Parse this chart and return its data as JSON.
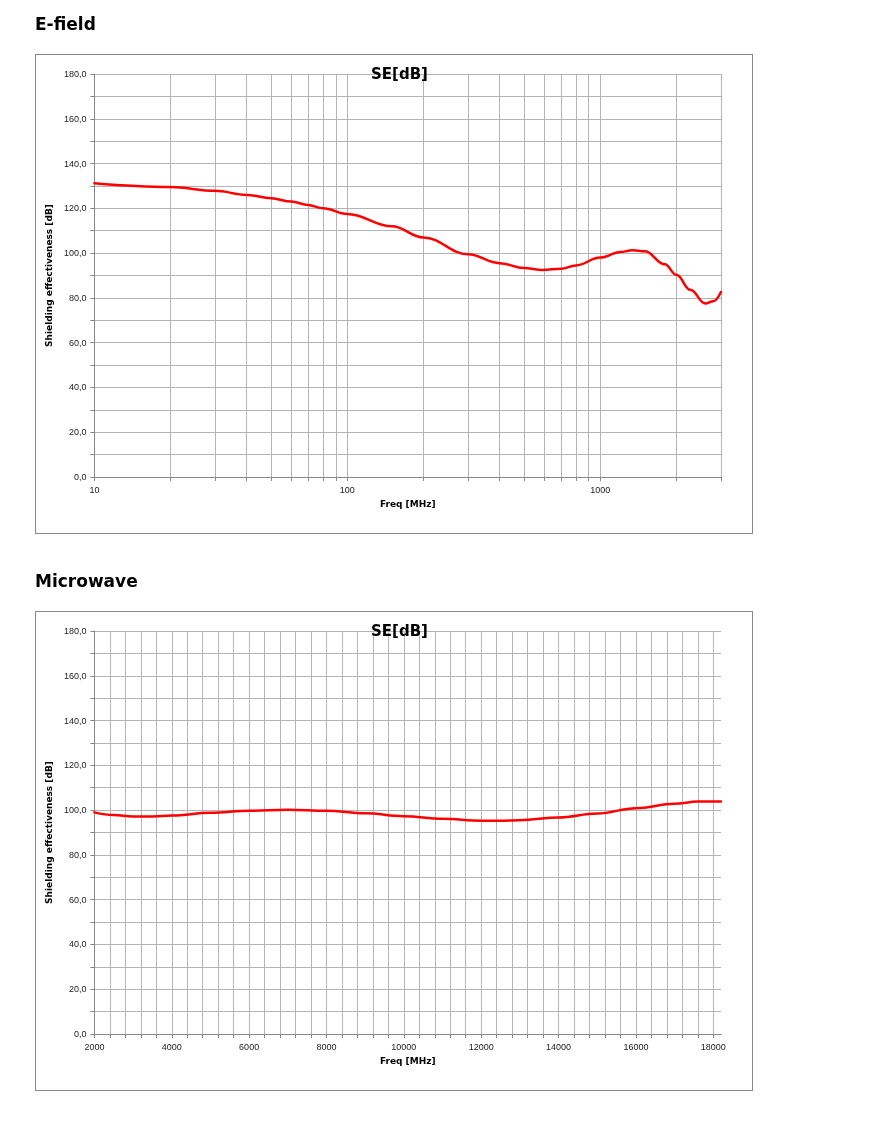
{
  "chart_data": [
    {
      "type": "line",
      "title": "E-field",
      "subtitle": "SE[dB]",
      "xlabel": "Freq [MHz]",
      "ylabel": "Shielding effectiveness [dB]",
      "log": "x",
      "grid": true,
      "marker": "none",
      "line_style": "solid",
      "x": [
        10,
        20,
        30,
        40,
        50,
        60,
        70,
        80,
        100,
        150,
        200,
        300,
        400,
        500,
        590,
        700,
        800,
        1000,
        1200,
        1340,
        1500,
        1800,
        2000,
        2270,
        2600,
        2800,
        3000
      ],
      "series": [
        {
          "color": "#ff0000",
          "values": [
            131.2,
            129.5,
            127.8,
            126,
            124.5,
            123,
            121.5,
            120,
            117.5,
            112,
            107,
            99.5,
            95.5,
            93.3,
            92.5,
            93,
            94.5,
            98,
            100.5,
            101.3,
            100.8,
            95,
            90.3,
            83.6,
            77.5,
            78.5,
            82.6
          ]
        }
      ],
      "xlim": [
        10,
        3000
      ],
      "xticks": [
        10,
        {
          "value": 20,
          "label": null
        },
        {
          "value": 30,
          "label": null
        },
        {
          "value": 40,
          "label": null
        },
        {
          "value": 50,
          "label": null
        },
        {
          "value": 60,
          "label": null
        },
        {
          "value": 70,
          "label": null
        },
        {
          "value": 80,
          "label": null
        },
        {
          "value": 90,
          "label": null
        },
        100,
        {
          "value": 200,
          "label": null
        },
        {
          "value": 300,
          "label": null
        },
        {
          "value": 400,
          "label": null
        },
        {
          "value": 500,
          "label": null
        },
        {
          "value": 600,
          "label": null
        },
        {
          "value": 700,
          "label": null
        },
        {
          "value": 800,
          "label": null
        },
        {
          "value": 900,
          "label": null
        },
        1000,
        {
          "value": 2000,
          "label": null
        },
        {
          "value": 3000,
          "label": null
        }
      ],
      "ylim": [
        0,
        180
      ],
      "yticks": [
        {
          "value": 0,
          "label": "0,0"
        },
        {
          "value": 10,
          "label": null
        },
        {
          "value": 20,
          "label": "20,0"
        },
        {
          "value": 30,
          "label": null
        },
        {
          "value": 40,
          "label": "40,0"
        },
        {
          "value": 50,
          "label": null
        },
        {
          "value": 60,
          "label": "60,0"
        },
        {
          "value": 70,
          "label": null
        },
        {
          "value": 80,
          "label": "80,0"
        },
        {
          "value": 90,
          "label": null
        },
        {
          "value": 100,
          "label": "100,0"
        },
        {
          "value": 110,
          "label": null
        },
        {
          "value": 120,
          "label": "120,0"
        },
        {
          "value": 130,
          "label": null
        },
        {
          "value": 140,
          "label": "140,0"
        },
        {
          "value": 150,
          "label": null
        },
        {
          "value": 160,
          "label": "160,0"
        },
        {
          "value": 170,
          "label": null
        },
        {
          "value": 180,
          "label": "180,0"
        }
      ]
    },
    {
      "type": "line",
      "title": "Microwave",
      "subtitle": "SE[dB]",
      "xlabel": "Freq [MHz]",
      "ylabel": "Shielding effectiveness [dB]",
      "grid": true,
      "marker": "none",
      "line_style": "solid",
      "x": [
        2000,
        2500,
        3000,
        3500,
        4000,
        5000,
        6000,
        7000,
        8000,
        9000,
        10000,
        11000,
        12000,
        12500,
        13000,
        14000,
        15000,
        16000,
        17000,
        17600,
        18200
      ],
      "series": [
        {
          "color": "#ff0000",
          "values": [
            99,
            97.8,
            97.2,
            97.2,
            97.6,
            98.8,
            99.7,
            100.2,
            99.7,
            98.6,
            97.3,
            96.1,
            95.3,
            95.3,
            95.5,
            96.7,
            98.5,
            100.8,
            102.8,
            103.8,
            103.9
          ]
        }
      ],
      "xlim": [
        2000,
        18200
      ],
      "xticks": [
        2000,
        {
          "value": 2400,
          "label": null
        },
        {
          "value": 2800,
          "label": null
        },
        {
          "value": 3200,
          "label": null
        },
        {
          "value": 3600,
          "label": null
        },
        4000,
        {
          "value": 4400,
          "label": null
        },
        {
          "value": 4800,
          "label": null
        },
        {
          "value": 5200,
          "label": null
        },
        {
          "value": 5600,
          "label": null
        },
        6000,
        {
          "value": 6400,
          "label": null
        },
        {
          "value": 6800,
          "label": null
        },
        {
          "value": 7200,
          "label": null
        },
        {
          "value": 7600,
          "label": null
        },
        8000,
        {
          "value": 8400,
          "label": null
        },
        {
          "value": 8800,
          "label": null
        },
        {
          "value": 9200,
          "label": null
        },
        {
          "value": 9600,
          "label": null
        },
        10000,
        {
          "value": 10400,
          "label": null
        },
        {
          "value": 10800,
          "label": null
        },
        {
          "value": 11200,
          "label": null
        },
        {
          "value": 11600,
          "label": null
        },
        12000,
        {
          "value": 12400,
          "label": null
        },
        {
          "value": 12800,
          "label": null
        },
        {
          "value": 13200,
          "label": null
        },
        {
          "value": 13600,
          "label": null
        },
        14000,
        {
          "value": 14400,
          "label": null
        },
        {
          "value": 14800,
          "label": null
        },
        {
          "value": 15200,
          "label": null
        },
        {
          "value": 15600,
          "label": null
        },
        16000,
        {
          "value": 16400,
          "label": null
        },
        {
          "value": 16800,
          "label": null
        },
        {
          "value": 17200,
          "label": null
        },
        {
          "value": 17600,
          "label": null
        },
        18000
      ],
      "ylim": [
        0,
        180
      ],
      "yticks": [
        {
          "value": 0,
          "label": "0,0"
        },
        {
          "value": 10,
          "label": null
        },
        {
          "value": 20,
          "label": "20,0"
        },
        {
          "value": 30,
          "label": null
        },
        {
          "value": 40,
          "label": "40,0"
        },
        {
          "value": 50,
          "label": null
        },
        {
          "value": 60,
          "label": "60,0"
        },
        {
          "value": 70,
          "label": null
        },
        {
          "value": 80,
          "label": "80,0"
        },
        {
          "value": 90,
          "label": null
        },
        {
          "value": 100,
          "label": "100,0"
        },
        {
          "value": 110,
          "label": null
        },
        {
          "value": 120,
          "label": "120,0"
        },
        {
          "value": 130,
          "label": null
        },
        {
          "value": 140,
          "label": "140,0"
        },
        {
          "value": 150,
          "label": null
        },
        {
          "value": 160,
          "label": "160,0"
        },
        {
          "value": 170,
          "label": null
        },
        {
          "value": 180,
          "label": "180,0"
        }
      ]
    }
  ]
}
